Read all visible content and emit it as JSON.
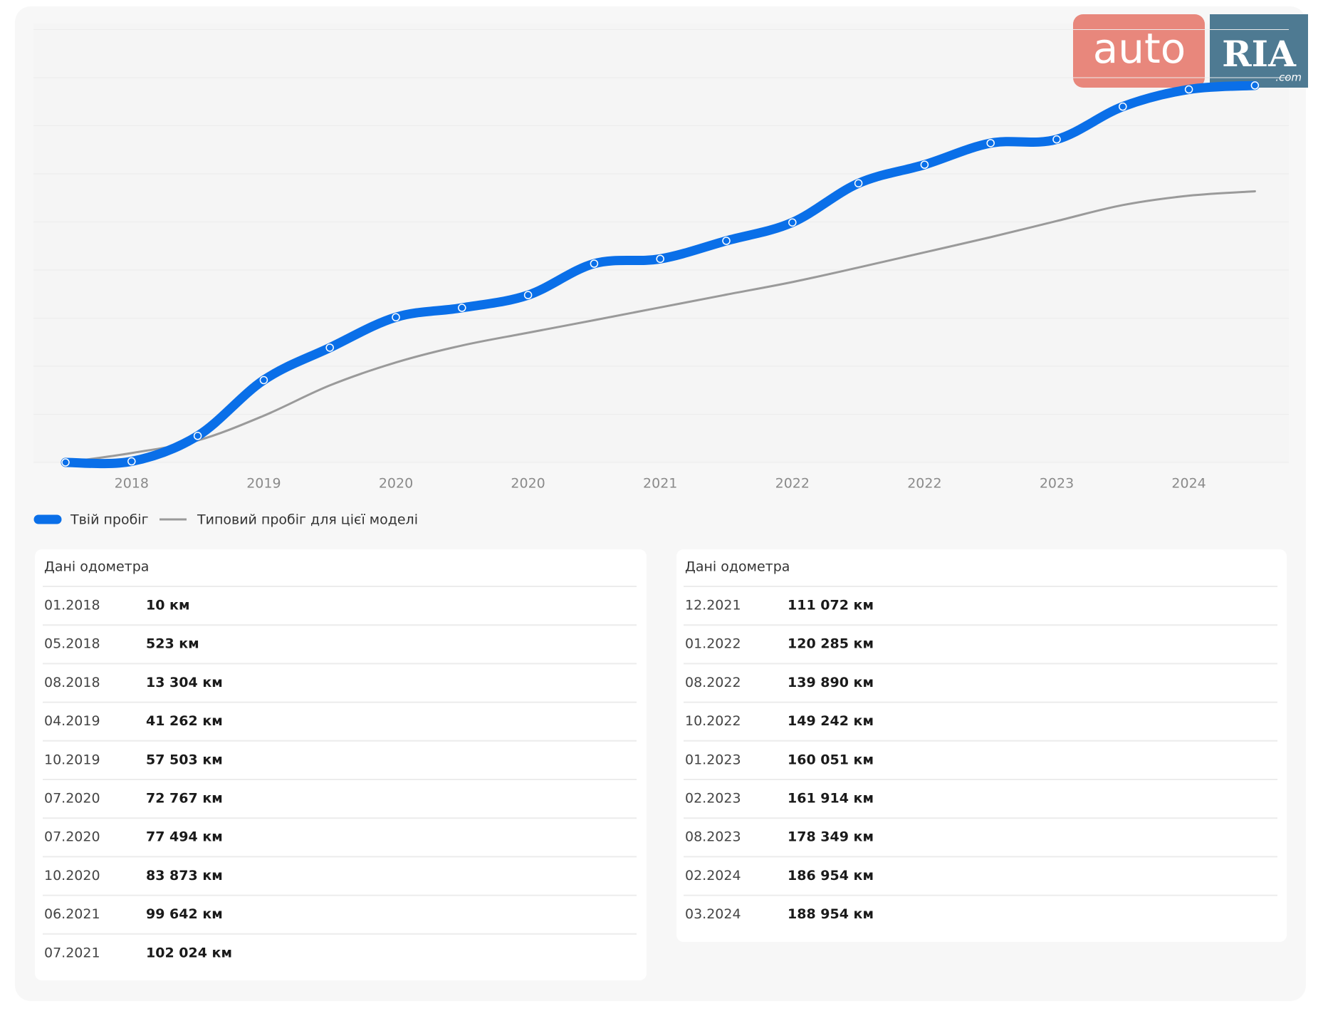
{
  "chart_data": {
    "type": "line",
    "categories": [
      null,
      "2018",
      null,
      "2019",
      null,
      "2020",
      null,
      "2020",
      null,
      "2021",
      null,
      "2022",
      null,
      "2022",
      null,
      "2023",
      null,
      "2024",
      null
    ],
    "series": [
      {
        "name": "Твій пробіг",
        "color": "#0a6fe8",
        "values": [
          10,
          523,
          13304,
          41262,
          57503,
          72767,
          77494,
          83873,
          99642,
          102024,
          111072,
          120285,
          139890,
          149242,
          160051,
          161914,
          178349,
          186954,
          188954
        ]
      },
      {
        "name": "Типовий пробіг для цієї моделі",
        "color": "#9a9a9a",
        "values": [
          0,
          4700,
          11000,
          23400,
          38600,
          50100,
          58600,
          65000,
          71300,
          77700,
          84100,
          90400,
          97700,
          105300,
          112900,
          121000,
          129000,
          133700,
          135900
        ]
      }
    ],
    "ylim": [
      0,
      220000
    ]
  },
  "tables": [
    {
      "title": "Дані одометра",
      "rows": [
        [
          "01.2018",
          "10 км"
        ],
        [
          "05.2018",
          "523 км"
        ],
        [
          "08.2018",
          "13 304 км"
        ],
        [
          "04.2019",
          "41 262 км"
        ],
        [
          "10.2019",
          "57 503 км"
        ],
        [
          "07.2020",
          "72 767 км"
        ],
        [
          "07.2020",
          "77 494 км"
        ],
        [
          "10.2020",
          "83 873 км"
        ],
        [
          "06.2021",
          "99 642 км"
        ],
        [
          "07.2021",
          "102 024 км"
        ]
      ]
    },
    {
      "title": "Дані одометра",
      "rows": [
        [
          "12.2021",
          "111 072 км"
        ],
        [
          "01.2022",
          "120 285 км"
        ],
        [
          "08.2022",
          "139 890 км"
        ],
        [
          "10.2022",
          "149 242 км"
        ],
        [
          "01.2023",
          "160 051 км"
        ],
        [
          "02.2023",
          "161 914 км"
        ],
        [
          "08.2023",
          "178 349 км"
        ],
        [
          "02.2024",
          "186 954 км"
        ],
        [
          "03.2024",
          "188 954 км"
        ]
      ]
    }
  ],
  "logo": {
    "left": "auto",
    "right": "RIA",
    "suffix": ".com"
  }
}
